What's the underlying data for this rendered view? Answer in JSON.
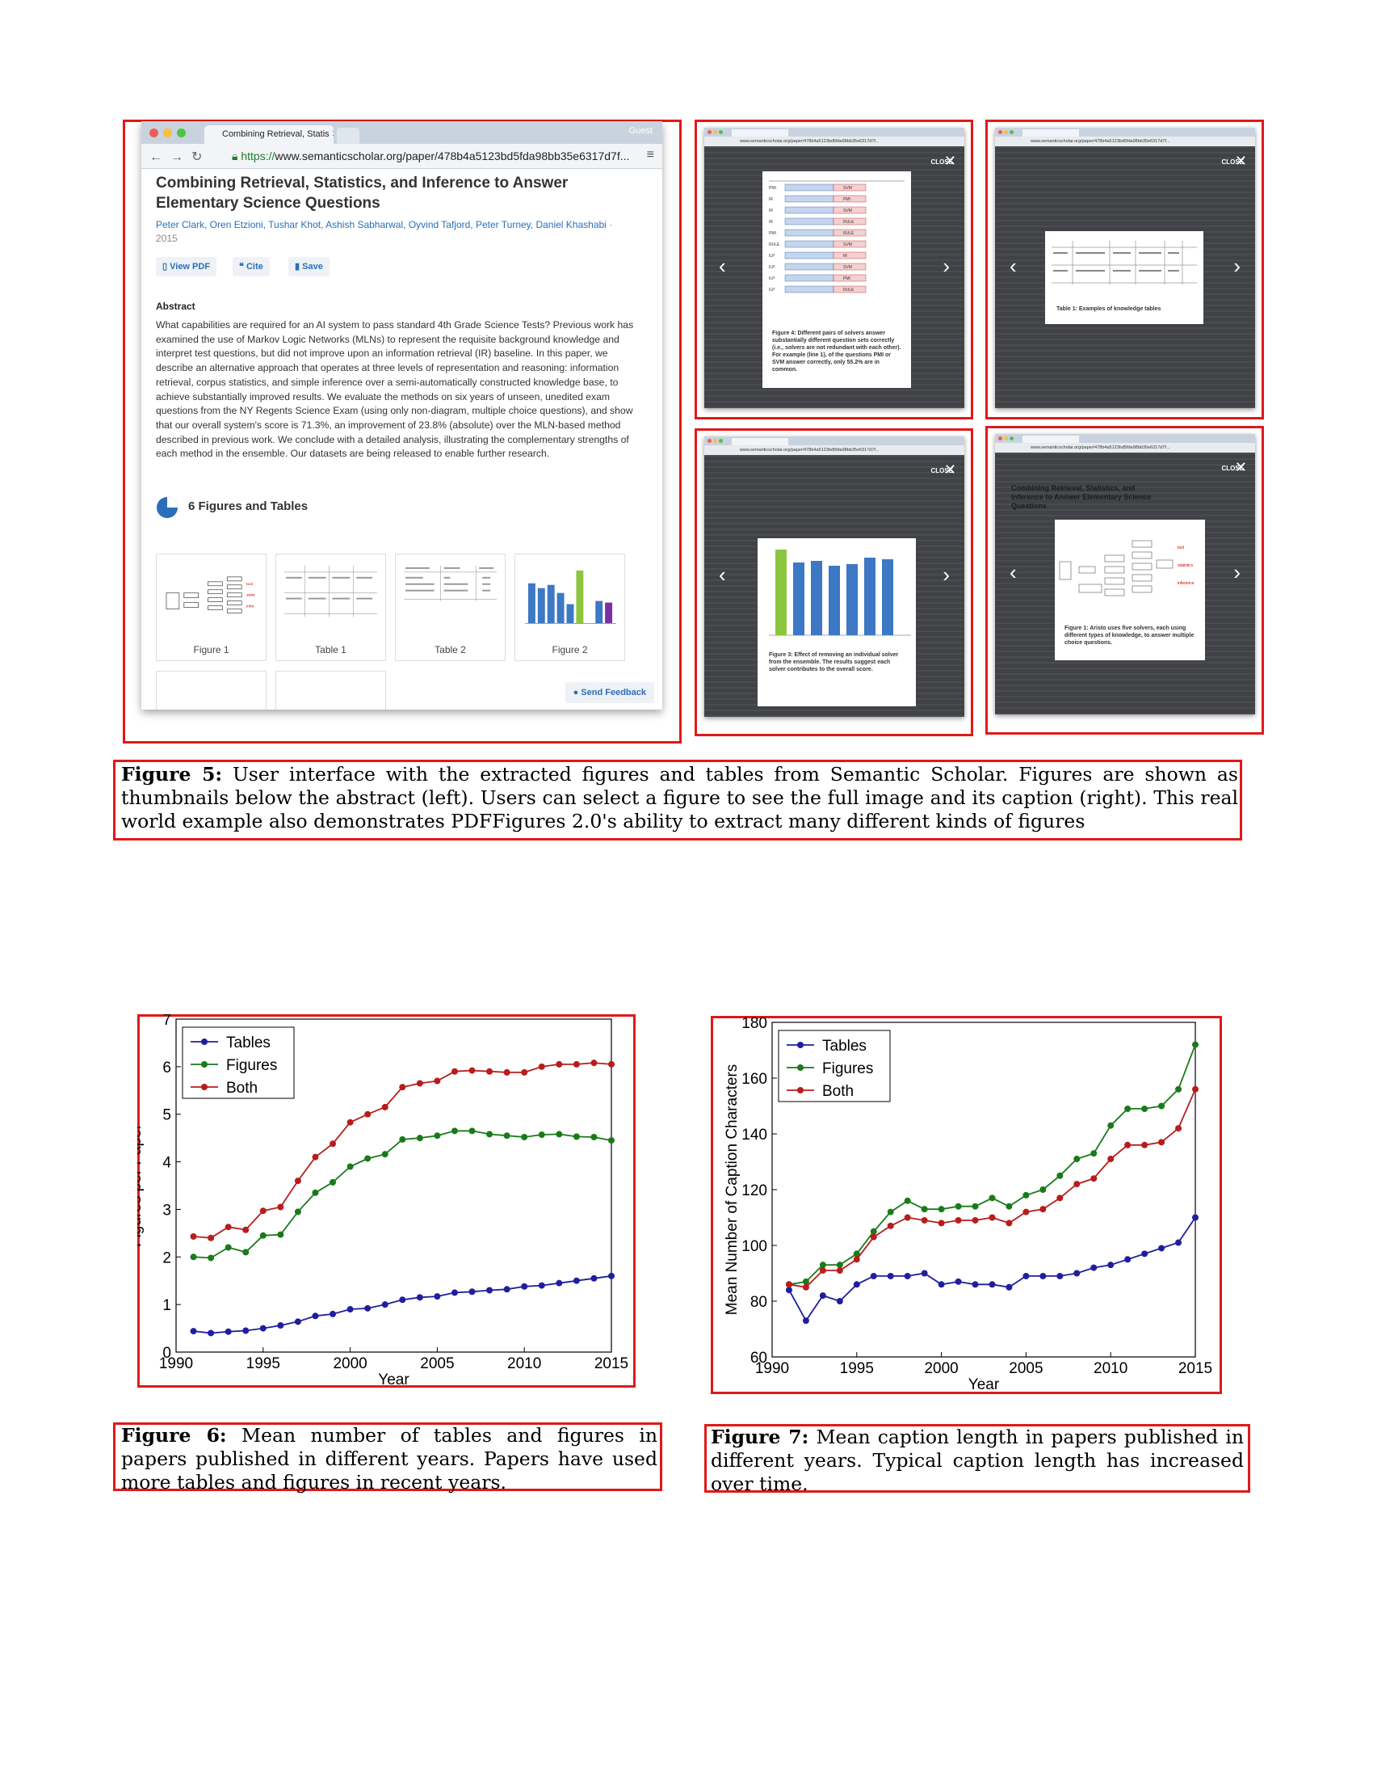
{
  "figure5": {
    "browser": {
      "tab_title": "Combining Retrieval, Statis",
      "guest": "Guest",
      "url_prefix": "https://",
      "url_rest": "www.semanticscholar.org/paper/478b4a5123bd5fda98bb35e6317d7f...",
      "paper_title": "Combining Retrieval, Statistics, and Inference to Answer Elementary Science Questions",
      "authors": "Peter Clark, Oren Etzioni, Tushar Khot, Ashish Sabharwal, Oyvind Tafjord, Peter Turney, Daniel Khashabi",
      "year": "· 2015",
      "actions": [
        "View PDF",
        "Cite",
        "Save"
      ],
      "abstract_heading": "Abstract",
      "abstract": "What capabilities are required for an AI system to pass standard 4th Grade Science Tests? Previous work has examined the use of Markov Logic Networks (MLNs) to represent the requisite background knowledge and interpret test questions, but did not improve upon an information retrieval (IR) baseline. In this paper, we describe an alternative approach that operates at three levels of representation and reasoning: information retrieval, corpus statistics, and simple inference over a semi-automatically constructed knowledge base, to achieve substantially improved results. We evaluate the methods on six years of unseen, unedited exam questions from the NY Regents Science Exam (using only non-diagram, multiple choice questions), and show that our overall system's score is 71.3%, an improvement of 23.8% (absolute) over the MLN-based method described in previous work. We conclude with a detailed analysis, illustrating the complementary strengths of each method in the ensemble. Our datasets are being released to enable further research.",
      "figures_heading": "6 Figures and Tables",
      "thumbnails": [
        "Figure 1",
        "Table 1",
        "Table 2",
        "Figure 2"
      ],
      "feedback": "Send Feedback"
    },
    "lightboxes": {
      "close_label": "CLOSE",
      "panel1_caption": "Figure 4: Different pairs of solvers answer substantially different question sets correctly (i.e., solvers are not redundant with each other). For example (line 1), of the questions PMI or SVM answer correctly, only 55.2% are in common.",
      "panel2_caption": "Table 1: Examples of knowledge tables",
      "panel3_caption": "Figure 3: Effect of removing an individual solver from the ensemble. The results suggest each solver contributes to the overall score.",
      "panel4_caption": "Figure 1: Aristo uses five solvers, each using different types of knowledge, to answer multiple choice questions.",
      "panel4_title": "Combining Retrieval, Statistics, and Inference to Answer Elementary Science Questions"
    },
    "caption_label": "Figure 5:",
    "caption_text": "User interface with the extracted figures and tables from Semantic Scholar. Figures are shown as thumbnails below the abstract (left). Users can select a figure to see the full image and its caption (right). This real world example also demonstrates PDFFigures 2.0's ability to extract many different kinds of figures"
  },
  "figure6": {
    "caption_label": "Figure 6:",
    "caption_text": "Mean number of tables and figures in papers published in different years. Papers have used more tables and figures in recent years."
  },
  "figure7": {
    "caption_label": "Figure 7:",
    "caption_text": "Mean caption length in papers published in different years. Typical caption length has increased over time."
  },
  "colors": {
    "tables": "#1f1f9e",
    "figures": "#1a7a1a",
    "both": "#b81c1c",
    "highlight": "#e01919"
  },
  "chart_data": [
    {
      "type": "line",
      "xlabel": "Year",
      "ylabel": "Figures per Paper",
      "xlim": [
        1990,
        2015
      ],
      "ylim": [
        0,
        7
      ],
      "xticks": [
        1990,
        1995,
        2000,
        2005,
        2010,
        2015
      ],
      "yticks": [
        0,
        1,
        2,
        3,
        4,
        5,
        6,
        7
      ],
      "legend": "top-left",
      "x": [
        1991,
        1992,
        1993,
        1994,
        1995,
        1996,
        1997,
        1998,
        1999,
        2000,
        2001,
        2002,
        2003,
        2004,
        2005,
        2006,
        2007,
        2008,
        2009,
        2010,
        2011,
        2012,
        2013,
        2014,
        2015
      ],
      "series": [
        {
          "name": "Tables",
          "values": [
            0.44,
            0.4,
            0.43,
            0.45,
            0.5,
            0.56,
            0.64,
            0.76,
            0.8,
            0.9,
            0.92,
            1.0,
            1.1,
            1.15,
            1.17,
            1.25,
            1.27,
            1.3,
            1.32,
            1.38,
            1.4,
            1.45,
            1.5,
            1.55,
            1.6
          ]
        },
        {
          "name": "Figures",
          "values": [
            2.0,
            1.98,
            2.2,
            2.1,
            2.45,
            2.47,
            2.95,
            3.35,
            3.57,
            3.9,
            4.07,
            4.16,
            4.47,
            4.5,
            4.55,
            4.65,
            4.65,
            4.58,
            4.55,
            4.52,
            4.57,
            4.58,
            4.53,
            4.52,
            4.45
          ]
        },
        {
          "name": "Both",
          "values": [
            2.43,
            2.4,
            2.63,
            2.57,
            2.97,
            3.05,
            3.6,
            4.1,
            4.38,
            4.83,
            5.0,
            5.15,
            5.57,
            5.65,
            5.7,
            5.9,
            5.92,
            5.9,
            5.88,
            5.88,
            6.0,
            6.05,
            6.05,
            6.08,
            6.05
          ]
        }
      ]
    },
    {
      "type": "line",
      "xlabel": "Year",
      "ylabel": "Mean Number of Caption Characters",
      "xlim": [
        1990,
        2015
      ],
      "ylim": [
        60,
        180
      ],
      "xticks": [
        1990,
        1995,
        2000,
        2005,
        2010,
        2015
      ],
      "yticks": [
        60,
        80,
        100,
        120,
        140,
        160,
        180
      ],
      "legend": "top-left",
      "x": [
        1991,
        1992,
        1993,
        1994,
        1995,
        1996,
        1997,
        1998,
        1999,
        2000,
        2001,
        2002,
        2003,
        2004,
        2005,
        2006,
        2007,
        2008,
        2009,
        2010,
        2011,
        2012,
        2013,
        2014,
        2015
      ],
      "series": [
        {
          "name": "Tables",
          "values": [
            84,
            73,
            82,
            80,
            86,
            89,
            89,
            89,
            90,
            86,
            87,
            86,
            86,
            85,
            89,
            89,
            89,
            90,
            92,
            93,
            95,
            97,
            99,
            101,
            110
          ]
        },
        {
          "name": "Figures",
          "values": [
            86,
            87,
            93,
            93,
            97,
            105,
            112,
            116,
            113,
            113,
            114,
            114,
            117,
            114,
            118,
            120,
            125,
            131,
            133,
            143,
            149,
            149,
            150,
            156,
            172
          ]
        },
        {
          "name": "Both",
          "values": [
            86,
            85,
            91,
            91,
            95,
            103,
            107,
            110,
            109,
            108,
            109,
            109,
            110,
            108,
            112,
            113,
            117,
            122,
            124,
            131,
            136,
            136,
            137,
            142,
            156
          ]
        }
      ]
    }
  ]
}
